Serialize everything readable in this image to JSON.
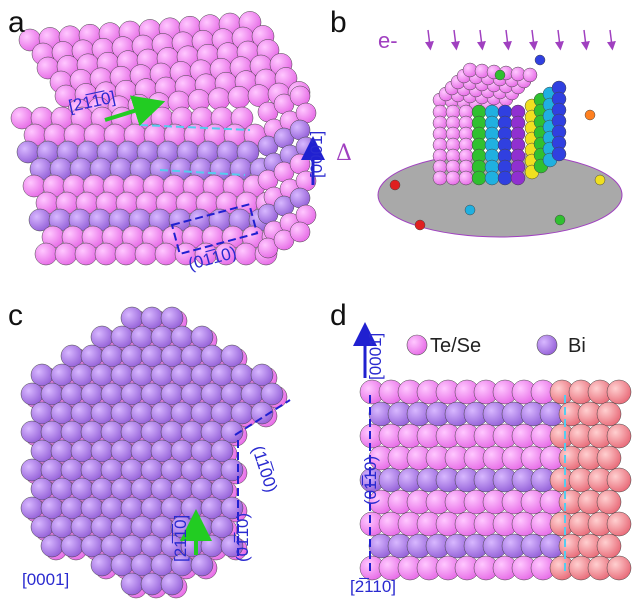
{
  "panels": [
    {
      "label": "a",
      "annotations": [
        "[21̅1̅0]",
        "[0001]",
        "(01̅10)"
      ]
    },
    {
      "label": "b",
      "annotations": [
        "e-",
        "Δ"
      ]
    },
    {
      "label": "c",
      "annotations": [
        "(11̅00)",
        "(01̅10)",
        "[21̅1̅0]",
        "[0001]"
      ]
    },
    {
      "label": "d",
      "annotations": [
        "[0001]",
        "(01̅10)",
        "[2̅110]"
      ],
      "legend": [
        "Te/Se",
        "Bi"
      ]
    }
  ]
}
